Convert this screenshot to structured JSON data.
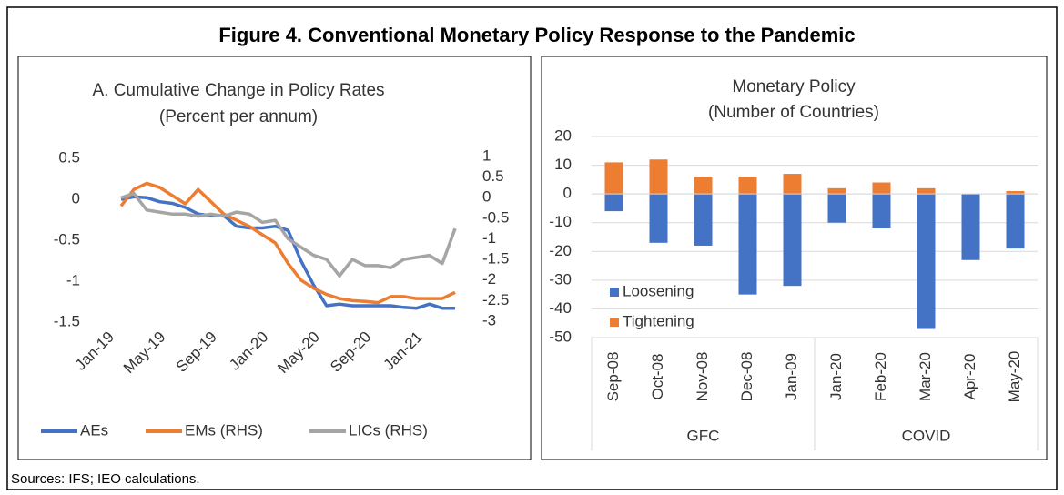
{
  "title": "Figure 4. Conventional Monetary  Policy Response to the Pandemic",
  "source": "Sources: IFS; IEO calculations.",
  "chart_data": [
    {
      "type": "line",
      "title": "A. Cumulative Change in Policy Rates",
      "subtitle": "(Percent per annum)",
      "categories": [
        "Jan-19",
        null,
        null,
        null,
        "May-19",
        null,
        null,
        null,
        "Sep-19",
        null,
        null,
        null,
        "Jan-20",
        null,
        null,
        null,
        "May-20",
        null,
        null,
        null,
        "Sep-20",
        null,
        null,
        null,
        "Jan-21",
        null,
        null
      ],
      "ylim": [
        -1.5,
        0.5
      ],
      "yticks": [
        -1.5,
        -1,
        -0.5,
        0,
        0.5
      ],
      "y2lim": [
        -3,
        1
      ],
      "y2ticks": [
        -3,
        -2.5,
        -2,
        -1.5,
        -1,
        -0.5,
        0,
        0.5,
        1
      ],
      "series": [
        {
          "name": "AEs",
          "color": "#4472c4",
          "values": [
            0,
            0.03,
            0.02,
            -0.03,
            -0.05,
            -0.1,
            -0.18,
            -0.2,
            -0.2,
            -0.33,
            -0.35,
            -0.35,
            -0.33,
            -0.38,
            -0.75,
            -1.05,
            -1.3,
            -1.28,
            -1.3,
            -1.3,
            -1.3,
            -1.3,
            -1.32,
            -1.33,
            -1.28,
            -1.33,
            -1.33
          ]
        },
        {
          "name": "EMs (RHS)",
          "color": "#ed7d31",
          "axis": "y2",
          "values": [
            -0.2,
            0.2,
            0.35,
            0.25,
            0.05,
            -0.15,
            0.2,
            -0.1,
            -0.4,
            -0.55,
            -0.7,
            -0.9,
            -1.1,
            -1.6,
            -2.0,
            -2.2,
            -2.35,
            -2.45,
            -2.5,
            -2.52,
            -2.55,
            -2.4,
            -2.4,
            -2.45,
            -2.45,
            -2.45,
            -2.3
          ]
        },
        {
          "name": "LICs (RHS)",
          "color": "#a5a5a5",
          "axis": "y2",
          "values": [
            0,
            0.1,
            -0.3,
            -0.35,
            -0.4,
            -0.4,
            -0.45,
            -0.4,
            -0.45,
            -0.35,
            -0.4,
            -0.6,
            -0.55,
            -1.0,
            -1.2,
            -1.4,
            -1.5,
            -1.9,
            -1.5,
            -1.65,
            -1.65,
            -1.7,
            -1.5,
            -1.45,
            -1.4,
            -1.6,
            -0.75
          ]
        }
      ]
    },
    {
      "type": "bar",
      "title": "Monetary Policy",
      "subtitle": "(Number of Countries)",
      "categories": [
        "Sep-08",
        "Oct-08",
        "Nov-08",
        "Dec-08",
        "Jan-09",
        "Jan-20",
        "Feb-20",
        "Mar-20",
        "Apr-20",
        "May-20"
      ],
      "groups": [
        "GFC",
        "COVID"
      ],
      "ylim": [
        -50,
        20
      ],
      "yticks": [
        -50,
        -40,
        -30,
        -20,
        -10,
        0,
        10,
        20
      ],
      "grid": true,
      "series": [
        {
          "name": "Loosening",
          "color": "#4472c4",
          "values": [
            -6,
            -17,
            -18,
            -35,
            -32,
            -10,
            -12,
            -47,
            -23,
            -19
          ]
        },
        {
          "name": "Tightening",
          "color": "#ed7d31",
          "values": [
            11,
            12,
            6,
            6,
            7,
            2,
            4,
            2,
            0,
            1
          ]
        }
      ]
    }
  ]
}
